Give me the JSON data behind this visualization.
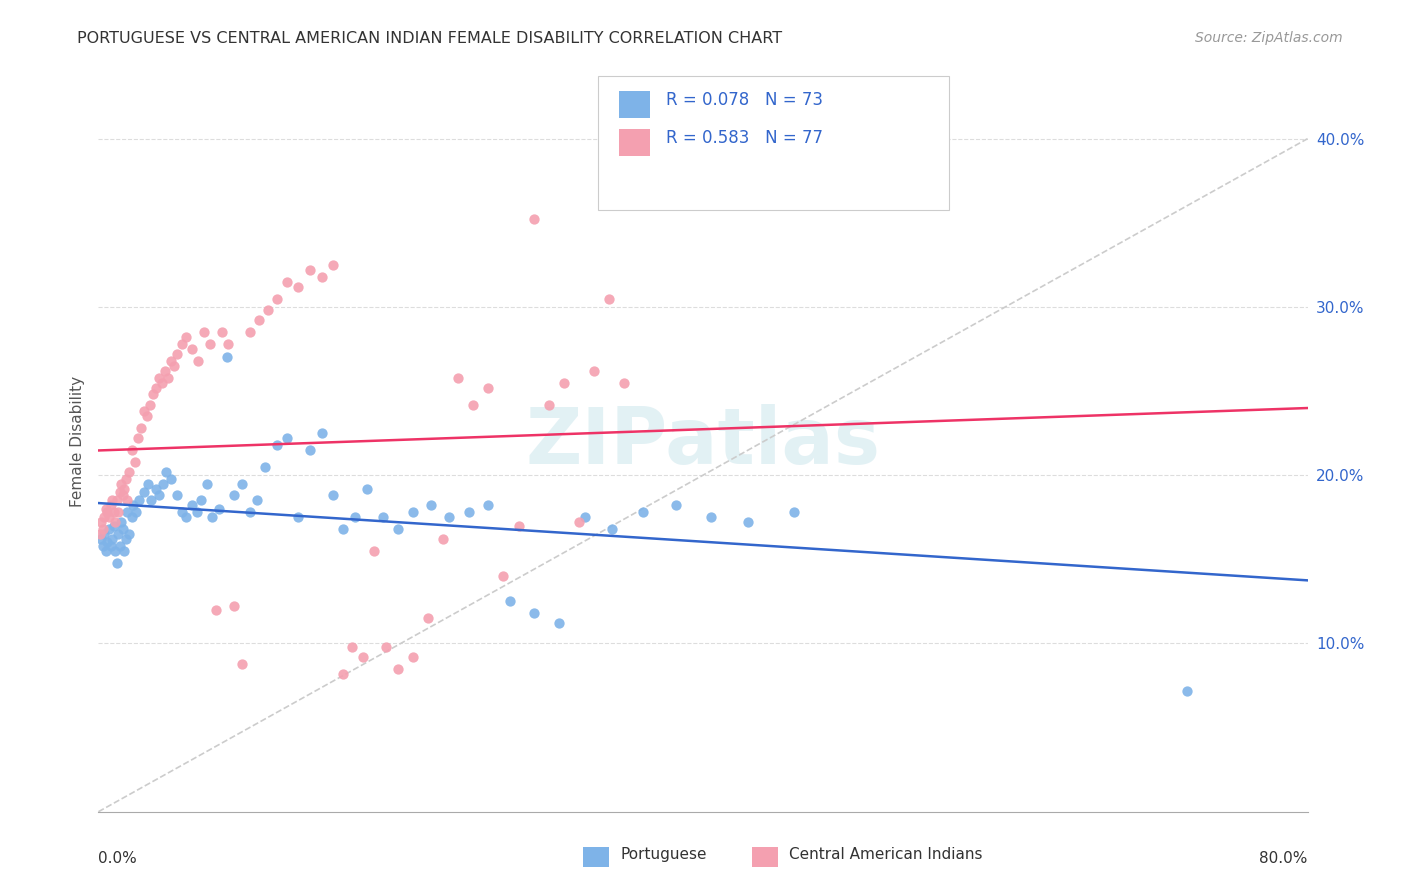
{
  "title": "PORTUGUESE VS CENTRAL AMERICAN INDIAN FEMALE DISABILITY CORRELATION CHART",
  "source": "Source: ZipAtlas.com",
  "ylabel": "Female Disability",
  "r_portuguese": 0.078,
  "n_portuguese": 73,
  "r_central": 0.583,
  "n_central": 77,
  "blue_color": "#7EB3E8",
  "pink_color": "#F4A0B0",
  "blue_line_color": "#3366CC",
  "pink_line_color": "#EE3366",
  "diag_color": "#CCCCCC",
  "legend_text_color": "#3366CC",
  "watermark_color": "#D0E8EE",
  "portuguese_x": [
    0.002,
    0.003,
    0.004,
    0.005,
    0.006,
    0.007,
    0.008,
    0.009,
    0.01,
    0.011,
    0.012,
    0.013,
    0.014,
    0.015,
    0.016,
    0.017,
    0.018,
    0.019,
    0.02,
    0.022,
    0.023,
    0.025,
    0.027,
    0.03,
    0.033,
    0.035,
    0.038,
    0.04,
    0.043,
    0.045,
    0.048,
    0.052,
    0.055,
    0.058,
    0.062,
    0.065,
    0.068,
    0.072,
    0.075,
    0.08,
    0.085,
    0.09,
    0.095,
    0.1,
    0.105,
    0.11,
    0.118,
    0.125,
    0.132,
    0.14,
    0.148,
    0.155,
    0.162,
    0.17,
    0.178,
    0.188,
    0.198,
    0.208,
    0.22,
    0.232,
    0.245,
    0.258,
    0.272,
    0.288,
    0.305,
    0.322,
    0.34,
    0.36,
    0.382,
    0.405,
    0.43,
    0.46,
    0.72
  ],
  "portuguese_y": [
    0.162,
    0.158,
    0.165,
    0.155,
    0.16,
    0.168,
    0.158,
    0.162,
    0.17,
    0.155,
    0.148,
    0.165,
    0.158,
    0.172,
    0.168,
    0.155,
    0.162,
    0.178,
    0.165,
    0.175,
    0.182,
    0.178,
    0.185,
    0.19,
    0.195,
    0.185,
    0.192,
    0.188,
    0.195,
    0.202,
    0.198,
    0.188,
    0.178,
    0.175,
    0.182,
    0.178,
    0.185,
    0.195,
    0.175,
    0.18,
    0.27,
    0.188,
    0.195,
    0.178,
    0.185,
    0.205,
    0.218,
    0.222,
    0.175,
    0.215,
    0.225,
    0.188,
    0.168,
    0.175,
    0.192,
    0.175,
    0.168,
    0.178,
    0.182,
    0.175,
    0.178,
    0.182,
    0.125,
    0.118,
    0.112,
    0.175,
    0.168,
    0.178,
    0.182,
    0.175,
    0.172,
    0.178,
    0.072
  ],
  "central_x": [
    0.001,
    0.002,
    0.003,
    0.004,
    0.005,
    0.006,
    0.007,
    0.008,
    0.009,
    0.01,
    0.011,
    0.012,
    0.013,
    0.014,
    0.015,
    0.016,
    0.017,
    0.018,
    0.019,
    0.02,
    0.022,
    0.024,
    0.026,
    0.028,
    0.03,
    0.032,
    0.034,
    0.036,
    0.038,
    0.04,
    0.042,
    0.044,
    0.046,
    0.048,
    0.05,
    0.052,
    0.055,
    0.058,
    0.062,
    0.066,
    0.07,
    0.074,
    0.078,
    0.082,
    0.086,
    0.09,
    0.095,
    0.1,
    0.106,
    0.112,
    0.118,
    0.125,
    0.132,
    0.14,
    0.148,
    0.155,
    0.162,
    0.168,
    0.175,
    0.182,
    0.19,
    0.198,
    0.208,
    0.218,
    0.228,
    0.238,
    0.248,
    0.258,
    0.268,
    0.278,
    0.288,
    0.298,
    0.308,
    0.318,
    0.328,
    0.338,
    0.348
  ],
  "central_y": [
    0.165,
    0.172,
    0.168,
    0.175,
    0.18,
    0.178,
    0.175,
    0.182,
    0.185,
    0.178,
    0.172,
    0.185,
    0.178,
    0.19,
    0.195,
    0.188,
    0.192,
    0.198,
    0.185,
    0.202,
    0.215,
    0.208,
    0.222,
    0.228,
    0.238,
    0.235,
    0.242,
    0.248,
    0.252,
    0.258,
    0.255,
    0.262,
    0.258,
    0.268,
    0.265,
    0.272,
    0.278,
    0.282,
    0.275,
    0.268,
    0.285,
    0.278,
    0.12,
    0.285,
    0.278,
    0.122,
    0.088,
    0.285,
    0.292,
    0.298,
    0.305,
    0.315,
    0.312,
    0.322,
    0.318,
    0.325,
    0.082,
    0.098,
    0.092,
    0.155,
    0.098,
    0.085,
    0.092,
    0.115,
    0.162,
    0.258,
    0.242,
    0.252,
    0.14,
    0.17,
    0.352,
    0.242,
    0.255,
    0.172,
    0.262,
    0.305,
    0.255
  ],
  "xlim": [
    0.0,
    0.8
  ],
  "ylim": [
    0.0,
    0.44
  ],
  "ytick_vals": [
    0.1,
    0.2,
    0.3,
    0.4
  ],
  "ytick_labels": [
    "10.0%",
    "20.0%",
    "30.0%",
    "40.0%"
  ]
}
